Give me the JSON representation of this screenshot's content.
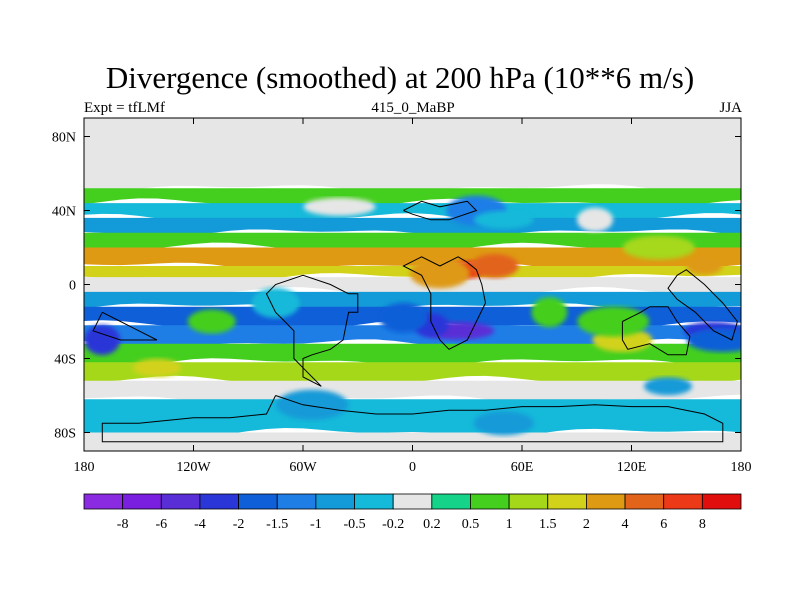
{
  "chart_data": {
    "type": "heatmap",
    "title": "Divergence (smoothed) at 200 hPa (10**6 m/s)",
    "subtitle_left": "Expt = tfLMf",
    "subtitle_center": "415_0_MaBP",
    "subtitle_right": "JJA",
    "xlabel": "",
    "ylabel": "",
    "xlim": [
      -180,
      180
    ],
    "ylim": [
      -90,
      90
    ],
    "x_ticks": [
      {
        "value": -180,
        "label": "180"
      },
      {
        "value": -120,
        "label": "120W"
      },
      {
        "value": -60,
        "label": "60W"
      },
      {
        "value": 0,
        "label": "0"
      },
      {
        "value": 60,
        "label": "60E"
      },
      {
        "value": 120,
        "label": "120E"
      },
      {
        "value": 180,
        "label": "180"
      }
    ],
    "y_ticks": [
      {
        "value": 80,
        "label": "80N"
      },
      {
        "value": 40,
        "label": "40N"
      },
      {
        "value": 0,
        "label": "0"
      },
      {
        "value": -40,
        "label": "40S"
      },
      {
        "value": -80,
        "label": "80S"
      }
    ],
    "colorbar": {
      "labels": [
        "-8",
        "-6",
        "-4",
        "-2",
        "-1.5",
        "-1",
        "-0.5",
        "-0.2",
        "0.2",
        "0.5",
        "1",
        "1.5",
        "2",
        "4",
        "6",
        "8"
      ],
      "colors": [
        "#8a2be2",
        "#7a1fe0",
        "#5a2ed6",
        "#2a36d8",
        "#0f5fd8",
        "#1e7ee6",
        "#139ad8",
        "#15b9d9",
        "#e6e6e6",
        "#15d48a",
        "#44cf1f",
        "#a6d81a",
        "#d2d21a",
        "#de9a12",
        "#e2641b",
        "#ec3a18",
        "#e10e0e"
      ]
    },
    "bands": [
      {
        "lat": [
          80,
          90
        ],
        "value": 0
      },
      {
        "lat": [
          52,
          80
        ],
        "value": 0
      },
      {
        "lat": [
          44,
          52
        ],
        "value": 0.5
      },
      {
        "lat": [
          36,
          44
        ],
        "value": -0.5
      },
      {
        "lat": [
          28,
          36
        ],
        "value": -1
      },
      {
        "lat": [
          20,
          28
        ],
        "value": 0.5
      },
      {
        "lat": [
          10,
          20
        ],
        "value": 2
      },
      {
        "lat": [
          4,
          10
        ],
        "value": 1.5
      },
      {
        "lat": [
          -4,
          4
        ],
        "value": 0
      },
      {
        "lat": [
          -12,
          -4
        ],
        "value": -1
      },
      {
        "lat": [
          -22,
          -12
        ],
        "value": -2
      },
      {
        "lat": [
          -32,
          -22
        ],
        "value": -1.5
      },
      {
        "lat": [
          -42,
          -32
        ],
        "value": 0.5
      },
      {
        "lat": [
          -52,
          -42
        ],
        "value": 1
      },
      {
        "lat": [
          -62,
          -52
        ],
        "value": 0
      },
      {
        "lat": [
          -80,
          -62
        ],
        "value": -0.5
      },
      {
        "lat": [
          -90,
          -80
        ],
        "value": 0
      }
    ],
    "features": [
      {
        "lon": 30,
        "lat": 8,
        "value": 6
      },
      {
        "lon": 45,
        "lat": 10,
        "value": 4
      },
      {
        "lon": 15,
        "lat": 6,
        "value": 2
      },
      {
        "lon": 25,
        "lat": -25,
        "value": -6
      },
      {
        "lon": 10,
        "lat": -22,
        "value": -4
      },
      {
        "lon": -5,
        "lat": -18,
        "value": -2
      },
      {
        "lon": 165,
        "lat": -25,
        "value": -4
      },
      {
        "lon": 170,
        "lat": -30,
        "value": -2
      },
      {
        "lon": -170,
        "lat": -30,
        "value": -4
      },
      {
        "lon": -140,
        "lat": -45,
        "value": 1.5
      },
      {
        "lon": 115,
        "lat": -30,
        "value": 1.5
      },
      {
        "lon": 110,
        "lat": -20,
        "value": 0.5
      },
      {
        "lon": 160,
        "lat": 10,
        "value": 2
      },
      {
        "lon": -110,
        "lat": -20,
        "value": 0.5
      },
      {
        "lon": 35,
        "lat": 40,
        "value": -1.5
      },
      {
        "lon": -40,
        "lat": 42,
        "value": 0
      },
      {
        "lon": 100,
        "lat": 35,
        "value": 0
      },
      {
        "lon": -75,
        "lat": -10,
        "value": -0.5
      },
      {
        "lon": 50,
        "lat": 35,
        "value": -0.5
      },
      {
        "lon": 135,
        "lat": 20,
        "value": 1
      },
      {
        "lon": 75,
        "lat": -15,
        "value": 0.5
      },
      {
        "lon": 140,
        "lat": -55,
        "value": -1
      },
      {
        "lon": 50,
        "lat": -75,
        "value": -1
      },
      {
        "lon": -55,
        "lat": -65,
        "value": -1
      }
    ]
  }
}
